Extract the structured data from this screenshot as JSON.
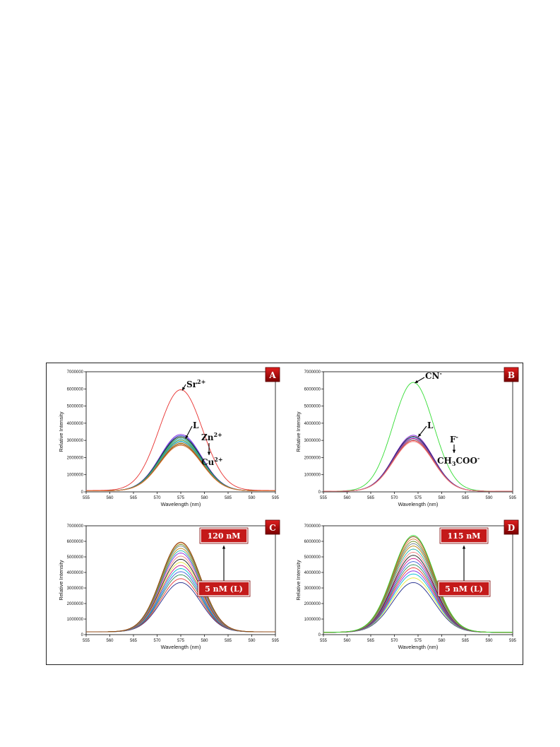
{
  "chart_data": [
    {
      "type": "line",
      "panel_label": "A",
      "xlabel": "Wavelength (nm)",
      "ylabel": "Relative Intensity",
      "xlim": [
        555,
        595
      ],
      "ylim": [
        0,
        7000000
      ],
      "xticks": [
        555,
        560,
        565,
        570,
        575,
        580,
        585,
        590,
        595
      ],
      "yticks": [
        0,
        1000000,
        2000000,
        3000000,
        4000000,
        5000000,
        6000000,
        7000000
      ],
      "curve_model": "gaussian",
      "series": [
        {
          "peak_x": 575,
          "peak_y": 5950000,
          "sigma": 4.6,
          "baseline": 80000,
          "color": "#e8312f"
        },
        {
          "peak_x": 575,
          "peak_y": 3350000,
          "sigma": 4.4,
          "baseline": 60000,
          "color": "#8a2be2"
        },
        {
          "peak_x": 575,
          "peak_y": 3280000,
          "sigma": 4.4,
          "baseline": 60000,
          "color": "#3a5bd9"
        },
        {
          "peak_x": 575,
          "peak_y": 3220000,
          "sigma": 4.4,
          "baseline": 60000,
          "color": "#1a1a1a"
        },
        {
          "peak_x": 575,
          "peak_y": 3150000,
          "sigma": 4.4,
          "baseline": 60000,
          "color": "#2e8b57"
        },
        {
          "peak_x": 575,
          "peak_y": 3080000,
          "sigma": 4.4,
          "baseline": 60000,
          "color": "#20b2aa"
        },
        {
          "peak_x": 575,
          "peak_y": 3010000,
          "sigma": 4.4,
          "baseline": 60000,
          "color": "#6b8e23"
        },
        {
          "peak_x": 575,
          "peak_y": 2950000,
          "sigma": 4.4,
          "baseline": 60000,
          "color": "#00bcd4"
        },
        {
          "peak_x": 575,
          "peak_y": 2890000,
          "sigma": 4.4,
          "baseline": 60000,
          "color": "#708090"
        },
        {
          "peak_x": 575,
          "peak_y": 2830000,
          "sigma": 4.4,
          "baseline": 60000,
          "color": "#b8860b"
        },
        {
          "peak_x": 575,
          "peak_y": 2770000,
          "sigma": 4.4,
          "baseline": 60000,
          "color": "#8b4513"
        },
        {
          "peak_x": 575,
          "peak_y": 2710000,
          "sigma": 4.4,
          "baseline": 60000,
          "color": "#e07b39"
        }
      ],
      "annotations": [
        {
          "base": "Sr",
          "sup": "2+"
        },
        {
          "base": "L",
          "sup": ""
        },
        {
          "base": "Zn",
          "sup": "2+"
        },
        {
          "base": "Cu",
          "sup": "2+"
        }
      ]
    },
    {
      "type": "line",
      "panel_label": "B",
      "xlabel": "Wavelength (nm)",
      "ylabel": "Relative Intensity",
      "xlim": [
        555,
        595
      ],
      "ylim": [
        0,
        7000000
      ],
      "xticks": [
        555,
        560,
        565,
        570,
        575,
        580,
        585,
        590,
        595
      ],
      "yticks": [
        0,
        1000000,
        2000000,
        3000000,
        4000000,
        5000000,
        6000000,
        7000000
      ],
      "curve_model": "gaussian",
      "series": [
        {
          "peak_x": 574,
          "peak_y": 6380000,
          "sigma": 4.3,
          "baseline": 40000,
          "color": "#33dd33"
        },
        {
          "peak_x": 574,
          "peak_y": 3300000,
          "sigma": 4.2,
          "baseline": 40000,
          "color": "#8a2be2"
        },
        {
          "peak_x": 574,
          "peak_y": 3230000,
          "sigma": 4.2,
          "baseline": 40000,
          "color": "#1a1a1a"
        },
        {
          "peak_x": 574,
          "peak_y": 3170000,
          "sigma": 4.2,
          "baseline": 40000,
          "color": "#3a5bd9"
        },
        {
          "peak_x": 574,
          "peak_y": 3110000,
          "sigma": 4.2,
          "baseline": 40000,
          "color": "#c71585"
        },
        {
          "peak_x": 574,
          "peak_y": 3050000,
          "sigma": 4.2,
          "baseline": 40000,
          "color": "#708090"
        },
        {
          "peak_x": 574,
          "peak_y": 2990000,
          "sigma": 4.2,
          "baseline": 40000,
          "color": "#e8312f"
        },
        {
          "peak_x": 574,
          "peak_y": 2930000,
          "sigma": 4.2,
          "baseline": 40000,
          "color": "#f08080"
        }
      ],
      "annotations": [
        {
          "base": "CN",
          "sup": "-"
        },
        {
          "base": "L",
          "sup": ""
        },
        {
          "base": "F",
          "sup": "-"
        },
        {
          "base": "CH",
          "sub": "3",
          "rest": "COO",
          "sup": "-"
        }
      ]
    },
    {
      "type": "line",
      "panel_label": "C",
      "xlabel": "Wavelength (nm)",
      "ylabel": "Relative Intensity",
      "xlim": [
        555,
        595
      ],
      "ylim": [
        0,
        7000000
      ],
      "xticks": [
        555,
        560,
        565,
        570,
        575,
        580,
        585,
        590,
        595
      ],
      "yticks": [
        0,
        1000000,
        2000000,
        3000000,
        4000000,
        5000000,
        6000000,
        7000000
      ],
      "curve_model": "gaussian",
      "peak_x": 575,
      "sigma": 4.2,
      "baseline": 180000,
      "peak_values": [
        3350000,
        3600000,
        3850000,
        4050000,
        4250000,
        4450000,
        4650000,
        4850000,
        5050000,
        5250000,
        5400000,
        5550000,
        5700000,
        5800000,
        5900000,
        5950000
      ],
      "colors": [
        "#1f2a8a",
        "#e8312f",
        "#2e8b57",
        "#3a5bd9",
        "#00bcd4",
        "#c71585",
        "#e8e83a",
        "#1a1a1a",
        "#f08080",
        "#8a2be2",
        "#20b2aa",
        "#b8860b",
        "#708090",
        "#6b8e23",
        "#e07b39",
        "#8b4513"
      ],
      "labels": {
        "top": "120 nM",
        "bottom": "5 nM (L)"
      }
    },
    {
      "type": "line",
      "panel_label": "D",
      "xlabel": "Wavelength (nm)",
      "ylabel": "Relative Intensity",
      "xlim": [
        555,
        595
      ],
      "ylim": [
        0,
        7000000
      ],
      "xticks": [
        555,
        560,
        565,
        570,
        575,
        580,
        585,
        590,
        595
      ],
      "yticks": [
        0,
        1000000,
        2000000,
        3000000,
        4000000,
        5000000,
        6000000,
        7000000
      ],
      "curve_model": "gaussian",
      "peak_x": 574,
      "sigma": 4.4,
      "baseline": 150000,
      "peak_values": [
        3350000,
        3650000,
        3900000,
        4100000,
        4300000,
        4500000,
        4700000,
        4900000,
        5100000,
        5300000,
        5500000,
        5700000,
        5850000,
        6000000,
        6150000,
        6300000,
        6380000
      ],
      "colors": [
        "#1f2a8a",
        "#e8e83a",
        "#00bcd4",
        "#8a2be2",
        "#e8312f",
        "#2e8b57",
        "#3a5bd9",
        "#c71585",
        "#1a1a1a",
        "#f08080",
        "#20b2aa",
        "#b8860b",
        "#708090",
        "#6b8e23",
        "#e07b39",
        "#8b4513",
        "#33dd33"
      ],
      "labels": {
        "top": "115 nM",
        "bottom": "5 nM (L)"
      }
    }
  ]
}
